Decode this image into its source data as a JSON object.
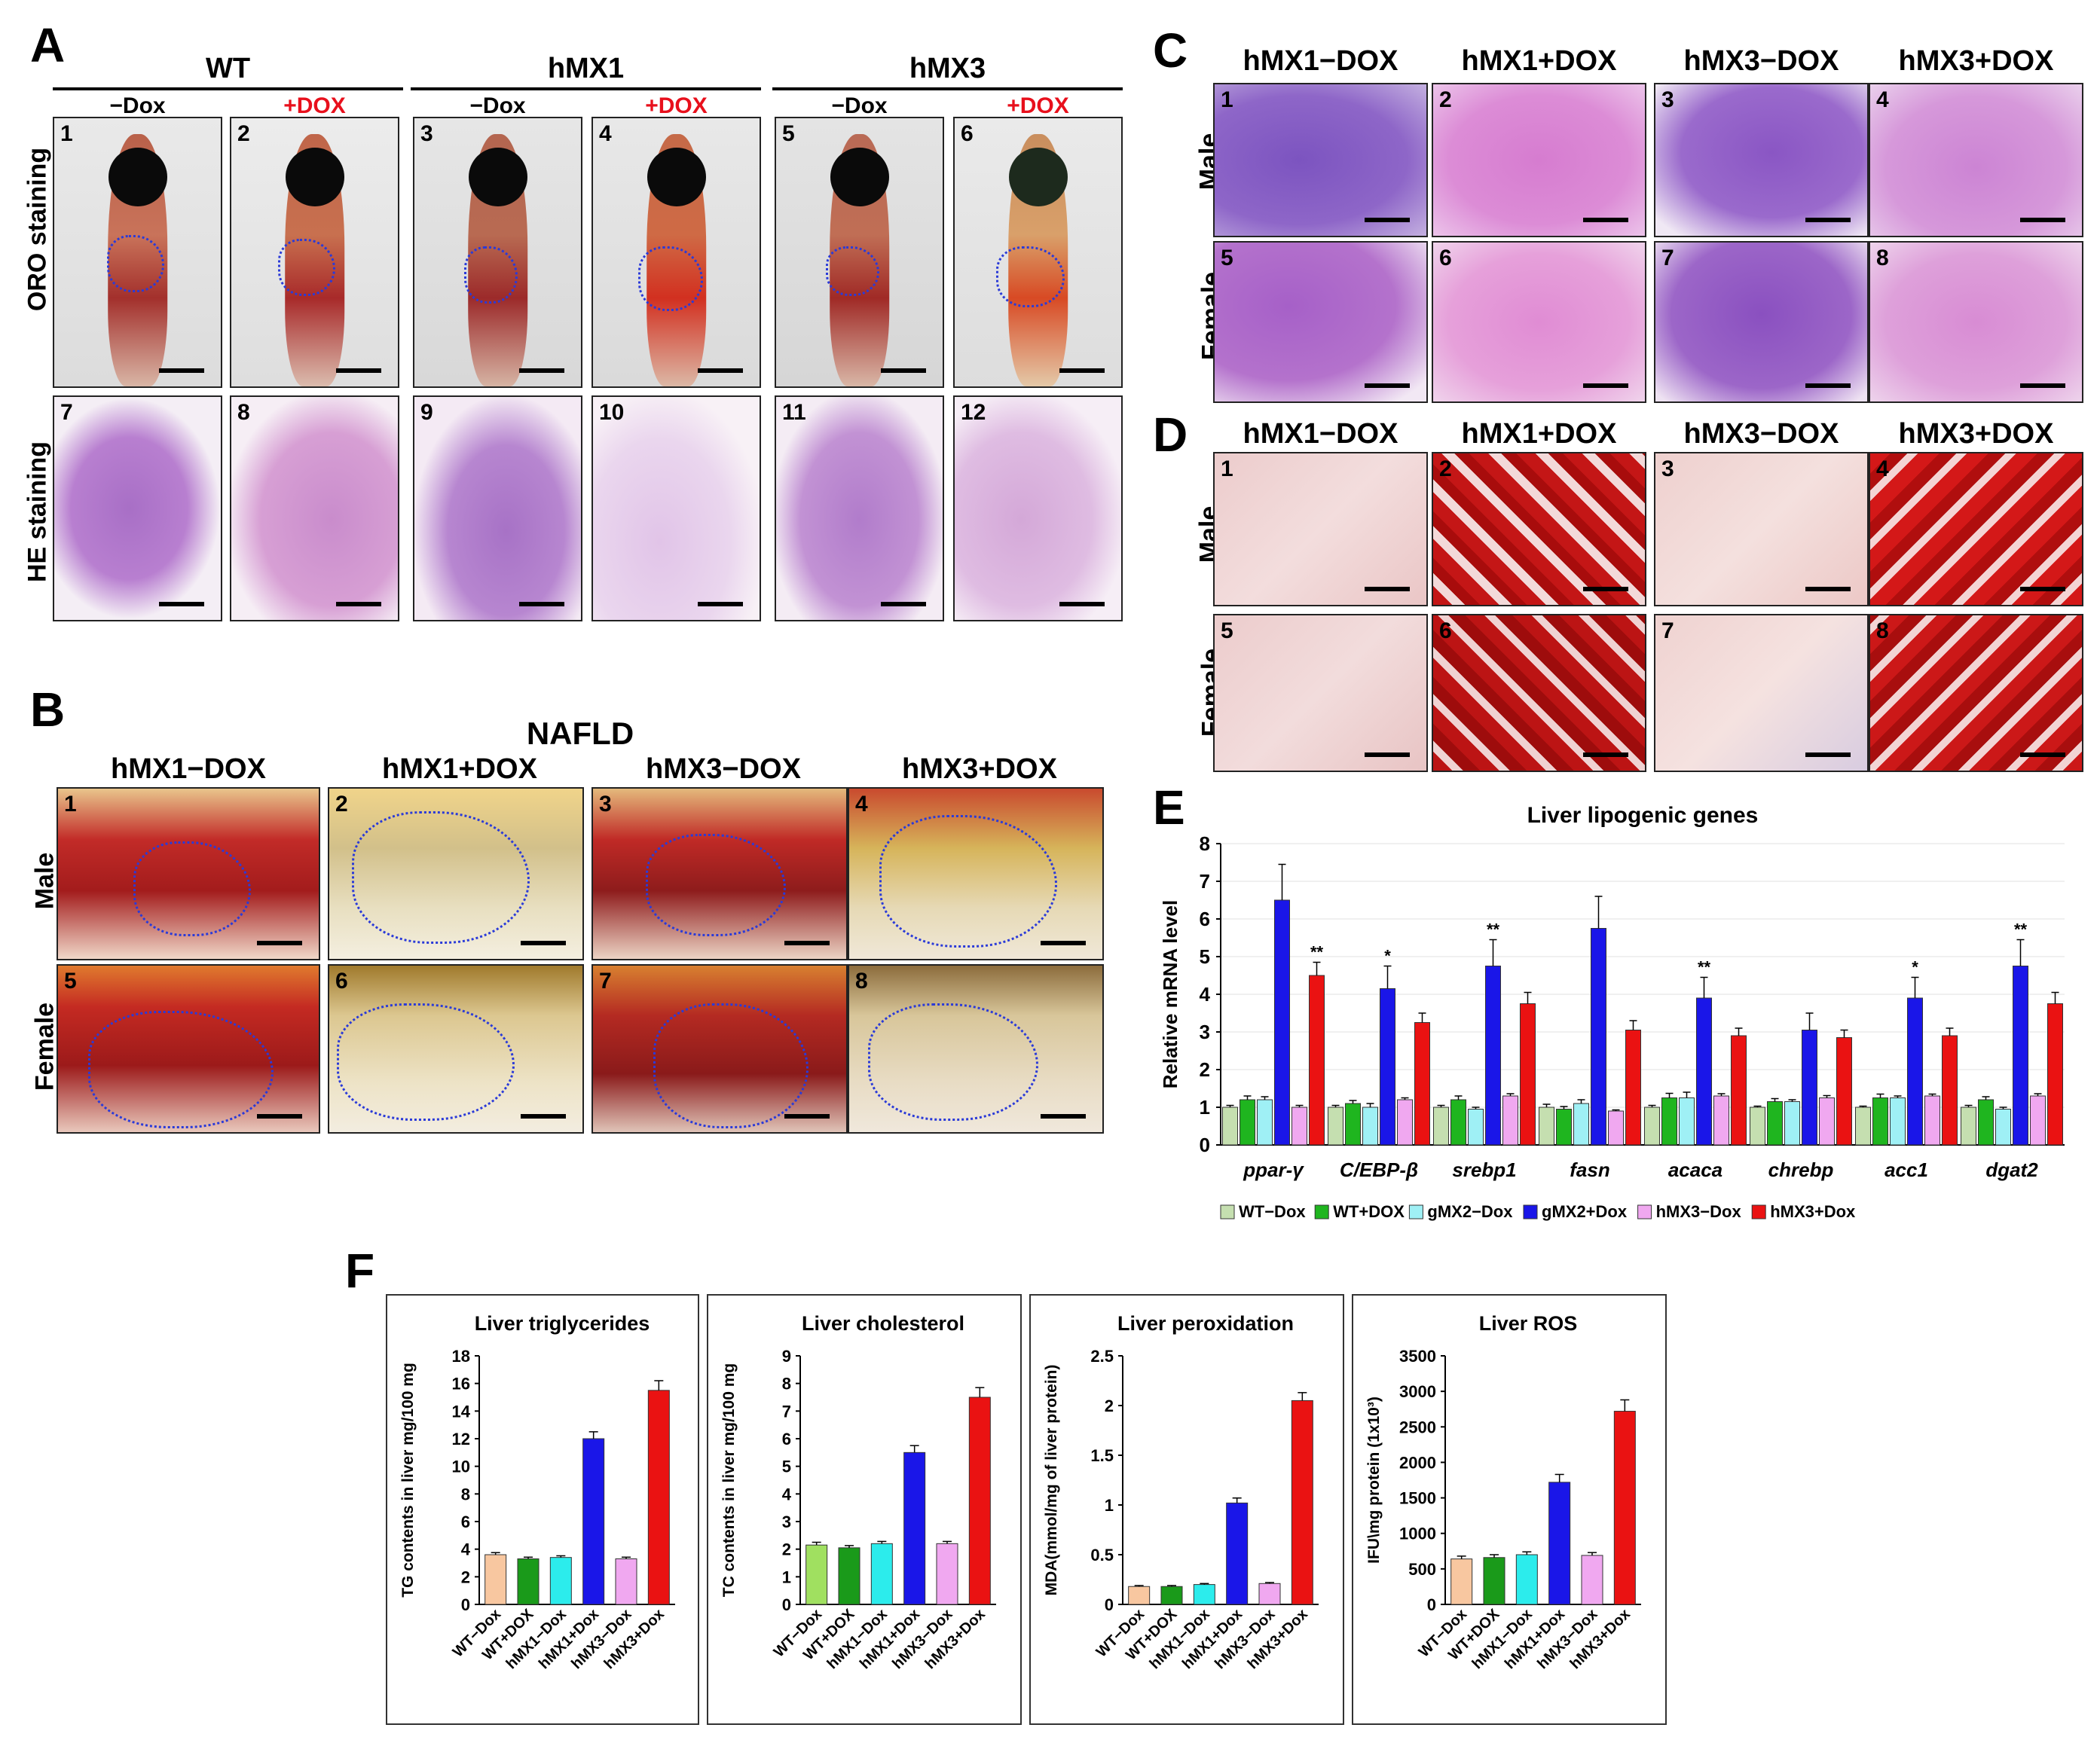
{
  "panel_labels": {
    "A": "A",
    "B": "B",
    "C": "C",
    "D": "D",
    "E": "E",
    "F": "F"
  },
  "panelA": {
    "groups": [
      "WT",
      "hMX1",
      "hMX3"
    ],
    "treatments": [
      "−Dox",
      "+DOX",
      "−Dox",
      "+DOX",
      "−Dox",
      "+DOX"
    ],
    "row_labels": [
      "ORO staining",
      "HE staining"
    ],
    "top_numbers": [
      "1",
      "2",
      "3",
      "4",
      "5",
      "6"
    ],
    "bottom_numbers": [
      "7",
      "8",
      "9",
      "10",
      "11",
      "12"
    ],
    "dox_color": "#e8101c"
  },
  "panelB": {
    "title": "NAFLD",
    "columns": [
      "hMX1−DOX",
      "hMX1+DOX",
      "hMX3−DOX",
      "hMX3+DOX"
    ],
    "row_labels": [
      "Male",
      "Female"
    ],
    "numbers": [
      "1",
      "2",
      "3",
      "4",
      "5",
      "6",
      "7",
      "8"
    ]
  },
  "panelC": {
    "columns": [
      "hMX1−DOX",
      "hMX1+DOX",
      "hMX3−DOX",
      "hMX3+DOX"
    ],
    "row_labels": [
      "Male",
      "Female"
    ],
    "numbers": [
      "1",
      "2",
      "3",
      "4",
      "5",
      "6",
      "7",
      "8"
    ]
  },
  "panelD": {
    "columns": [
      "hMX1−DOX",
      "hMX1+DOX",
      "hMX3−DOX",
      "hMX3+DOX"
    ],
    "row_labels": [
      "Male",
      "Female"
    ],
    "numbers": [
      "1",
      "2",
      "3",
      "4",
      "5",
      "6",
      "7",
      "8"
    ]
  },
  "chart_data": [
    {
      "id": "E",
      "type": "bar",
      "title": "Liver lipogenic genes",
      "ylabel": "Relative mRNA level",
      "xlabel": "",
      "ylim": [
        0,
        8
      ],
      "yticks": [
        0,
        1,
        2,
        3,
        4,
        5,
        6,
        7,
        8
      ],
      "grid": true,
      "categories": [
        "ppar-γ",
        "C/EBP-β",
        "srebp1",
        "fasn",
        "acaca",
        "chrebp",
        "acc1",
        "dgat2"
      ],
      "series": [
        {
          "name": "WT−Dox",
          "color": "#c5dfb0",
          "values": [
            1.0,
            1.0,
            1.0,
            1.0,
            1.0,
            1.0,
            1.0,
            1.0
          ],
          "errors": [
            0.05,
            0.05,
            0.05,
            0.08,
            0.05,
            0.03,
            0.03,
            0.05
          ]
        },
        {
          "name": "WT+DOX",
          "color": "#1fb51f",
          "values": [
            1.2,
            1.1,
            1.2,
            0.95,
            1.25,
            1.15,
            1.25,
            1.2
          ],
          "errors": [
            0.1,
            0.08,
            0.1,
            0.07,
            0.12,
            0.08,
            0.1,
            0.08
          ]
        },
        {
          "name": "gMX2−Dox",
          "color": "#9ff0f5",
          "values": [
            1.2,
            1.0,
            0.95,
            1.1,
            1.25,
            1.15,
            1.25,
            0.95
          ],
          "errors": [
            0.08,
            0.1,
            0.05,
            0.1,
            0.15,
            0.05,
            0.05,
            0.05
          ]
        },
        {
          "name": "gMX2+Dox",
          "color": "#1a16e8",
          "values": [
            6.5,
            4.15,
            4.75,
            5.75,
            3.9,
            3.05,
            3.9,
            4.75
          ],
          "errors": [
            0.95,
            0.6,
            0.7,
            0.85,
            0.55,
            0.45,
            0.55,
            0.7
          ]
        },
        {
          "name": "hMX3−Dox",
          "color": "#f0a8f0",
          "values": [
            1.0,
            1.2,
            1.3,
            0.9,
            1.3,
            1.25,
            1.3,
            1.3
          ],
          "errors": [
            0.05,
            0.05,
            0.06,
            0.03,
            0.06,
            0.06,
            0.05,
            0.06
          ]
        },
        {
          "name": "hMX3+Dox",
          "color": "#ea1212",
          "values": [
            4.5,
            3.25,
            3.75,
            3.05,
            2.9,
            2.85,
            2.9,
            3.75
          ],
          "errors": [
            0.35,
            0.25,
            0.3,
            0.25,
            0.2,
            0.2,
            0.2,
            0.3
          ]
        }
      ],
      "annotations": [
        {
          "category": "ppar-γ",
          "series": "hMX3+Dox",
          "text": "**"
        },
        {
          "category": "C/EBP-β",
          "series": "gMX2+Dox",
          "text": "*"
        },
        {
          "category": "srebp1",
          "series": "gMX2+Dox",
          "text": "**"
        },
        {
          "category": "acaca",
          "series": "gMX2+Dox",
          "text": "**"
        },
        {
          "category": "acc1",
          "series": "gMX2+Dox",
          "text": "*"
        },
        {
          "category": "dgat2",
          "series": "gMX2+Dox",
          "text": "**"
        }
      ],
      "legend_position": "bottom"
    },
    {
      "id": "F1",
      "type": "bar",
      "title": "Liver triglycerides",
      "ylabel": "TG contents in liver mg/100 mg",
      "ylim": [
        0,
        18
      ],
      "yticks": [
        0,
        2,
        4,
        6,
        8,
        10,
        12,
        14,
        16,
        18
      ],
      "categories": [
        "WT−Dox",
        "WT+DOX",
        "hMX1−Dox",
        "hMX1+Dox",
        "hMX3−Dox",
        "hMX3+Dox"
      ],
      "values": [
        3.6,
        3.3,
        3.4,
        12.0,
        3.3,
        15.5
      ],
      "errors": [
        0.15,
        0.12,
        0.12,
        0.5,
        0.12,
        0.7
      ],
      "colors": [
        "#f8c7a0",
        "#1a9a1a",
        "#2cecec",
        "#1a16e8",
        "#f0a8f0",
        "#ea1212"
      ]
    },
    {
      "id": "F2",
      "type": "bar",
      "title": "Liver cholesterol",
      "ylabel": "TC contents in liver mg/100 mg",
      "ylim": [
        0,
        9
      ],
      "yticks": [
        0,
        1,
        2,
        3,
        4,
        5,
        6,
        7,
        8,
        9
      ],
      "categories": [
        "WT−Dox",
        "WT+DOX",
        "hMX1−Dox",
        "hMX1+Dox",
        "hMX3−Dox",
        "hMX3+Dox"
      ],
      "values": [
        2.15,
        2.05,
        2.2,
        5.5,
        2.2,
        7.5
      ],
      "errors": [
        0.1,
        0.08,
        0.08,
        0.25,
        0.08,
        0.35
      ],
      "colors": [
        "#a0e060",
        "#1a9a1a",
        "#2cecec",
        "#1a16e8",
        "#f0a8f0",
        "#ea1212"
      ]
    },
    {
      "id": "F3",
      "type": "bar",
      "title": "Liver peroxidation",
      "ylabel": "MDA(mmol/mg of liver protein)",
      "ylim": [
        0,
        2.5
      ],
      "yticks": [
        0,
        0.5,
        1,
        1.5,
        2,
        2.5
      ],
      "categories": [
        "WT−Dox",
        "WT+DOX",
        "hMX1−Dox",
        "hMX1+Dox",
        "hMX3−Dox",
        "hMX3+Dox"
      ],
      "values": [
        0.18,
        0.18,
        0.2,
        1.02,
        0.21,
        2.05
      ],
      "errors": [
        0.01,
        0.01,
        0.01,
        0.05,
        0.01,
        0.08
      ],
      "colors": [
        "#f8c7a0",
        "#1a9a1a",
        "#2cecec",
        "#1a16e8",
        "#f0a8f0",
        "#ea1212"
      ]
    },
    {
      "id": "F4",
      "type": "bar",
      "title": "Liver ROS",
      "ylabel": "IFU\\mg protein (1x10³)",
      "ylim": [
        0,
        3500
      ],
      "yticks": [
        0,
        500,
        1000,
        1500,
        2000,
        2500,
        3000,
        3500
      ],
      "categories": [
        "WT−Dox",
        "WT+DOX",
        "hMX1−Dox",
        "hMX1+Dox",
        "hMX3−Dox",
        "hMX3+Dox"
      ],
      "values": [
        640,
        660,
        700,
        1720,
        690,
        2720
      ],
      "errors": [
        40,
        40,
        40,
        110,
        40,
        160
      ],
      "colors": [
        "#f8c7a0",
        "#1a9a1a",
        "#2cecec",
        "#1a16e8",
        "#f0a8f0",
        "#ea1212"
      ]
    }
  ]
}
